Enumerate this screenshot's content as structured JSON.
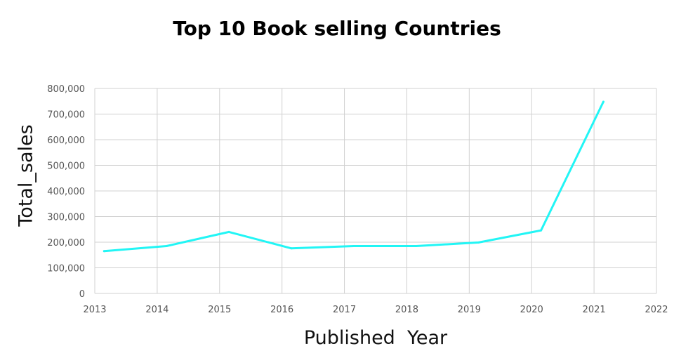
{
  "chart_data": {
    "type": "line",
    "title": "Top 10 Book selling Countries",
    "xlabel": "Published  Year",
    "ylabel": "Total_sales",
    "xlim": [
      2013,
      2022
    ],
    "ylim": [
      0,
      800000
    ],
    "x_ticks": [
      2013,
      2014,
      2015,
      2016,
      2017,
      2018,
      2019,
      2020,
      2021,
      2022
    ],
    "x_tick_labels": [
      "2013",
      "2014",
      "2015",
      "2016",
      "2017",
      "2018",
      "2019",
      "2020",
      "2021",
      "2022"
    ],
    "y_ticks": [
      0,
      100000,
      200000,
      300000,
      400000,
      500000,
      600000,
      700000,
      800000
    ],
    "y_tick_labels": [
      "0",
      "100,000",
      "200,000",
      "300,000",
      "400,000",
      "500,000",
      "600,000",
      "700,000",
      "800,000"
    ],
    "grid": true,
    "legend": "none",
    "line_color": "#22f5f5",
    "series": [
      {
        "x": [
          2013.15,
          2014.15,
          2015.15,
          2016.15,
          2017.15,
          2018.15,
          2019.15,
          2020.15,
          2021.15
        ],
        "values": [
          165000,
          185000,
          240000,
          176000,
          185000,
          185000,
          199000,
          246000,
          748000
        ]
      }
    ]
  }
}
